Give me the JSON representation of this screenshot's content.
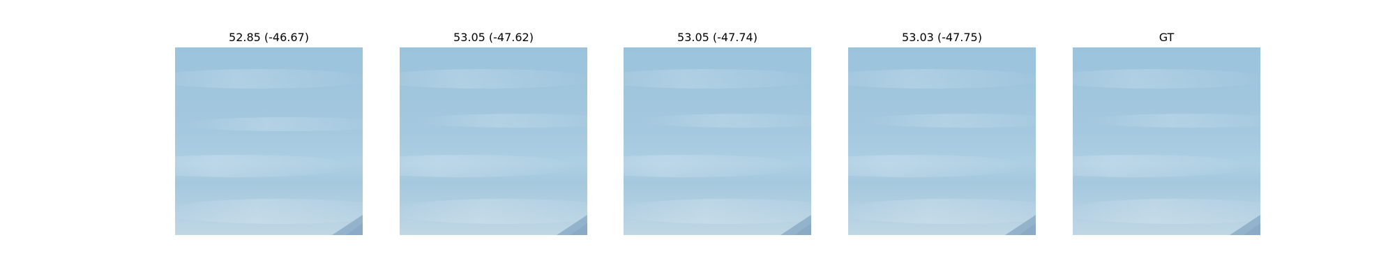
{
  "panels": [
    {
      "title": "52.85 (-46.67)"
    },
    {
      "title": "53.05 (-47.62)"
    },
    {
      "title": "53.05 (-47.74)"
    },
    {
      "title": "53.03 (-47.75)"
    },
    {
      "title": "GT"
    }
  ],
  "colors": {
    "sky_top": "#9cc5dd",
    "sky_mid": "#a6c9df",
    "sky_bottom": "#bdd5e3",
    "corner_edge": "#8fb0cc"
  }
}
